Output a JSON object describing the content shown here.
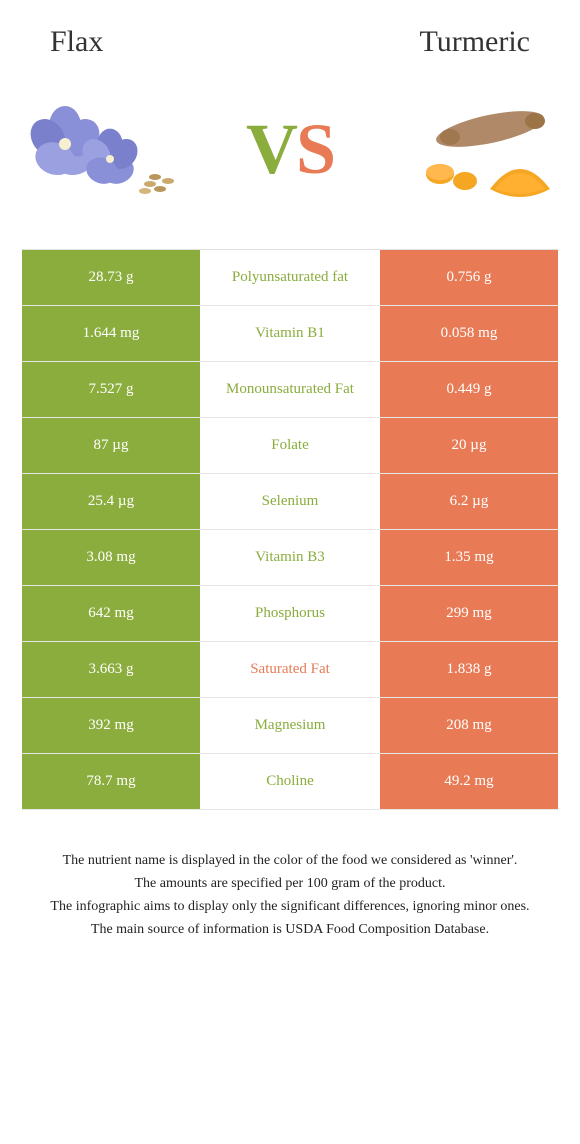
{
  "header": {
    "left": "Flax",
    "right": "Turmeric"
  },
  "vs": {
    "v": "V",
    "s": "S"
  },
  "colors": {
    "green": "#8aad3d",
    "orange": "#e87b56",
    "border": "#e8e8e8",
    "text": "#222"
  },
  "rows": [
    {
      "left": "28.73 g",
      "mid": "Polyunsaturated fat",
      "right": "0.756 g",
      "winner": "green"
    },
    {
      "left": "1.644 mg",
      "mid": "Vitamin B1",
      "right": "0.058 mg",
      "winner": "green"
    },
    {
      "left": "7.527 g",
      "mid": "Monounsaturated Fat",
      "right": "0.449 g",
      "winner": "green"
    },
    {
      "left": "87 µg",
      "mid": "Folate",
      "right": "20 µg",
      "winner": "green"
    },
    {
      "left": "25.4 µg",
      "mid": "Selenium",
      "right": "6.2 µg",
      "winner": "green"
    },
    {
      "left": "3.08 mg",
      "mid": "Vitamin B3",
      "right": "1.35 mg",
      "winner": "green"
    },
    {
      "left": "642 mg",
      "mid": "Phosphorus",
      "right": "299 mg",
      "winner": "green"
    },
    {
      "left": "3.663 g",
      "mid": "Saturated Fat",
      "right": "1.838 g",
      "winner": "orange"
    },
    {
      "left": "392 mg",
      "mid": "Magnesium",
      "right": "208 mg",
      "winner": "green"
    },
    {
      "left": "78.7 mg",
      "mid": "Choline",
      "right": "49.2 mg",
      "winner": "green"
    }
  ],
  "footer": [
    "The nutrient name is displayed in the color of the food we considered as 'winner'.",
    "The amounts are specified per 100 gram of the product.",
    "The infographic aims to display only the significant differences, ignoring minor ones.",
    "The main source of information is USDA Food Composition Database."
  ]
}
